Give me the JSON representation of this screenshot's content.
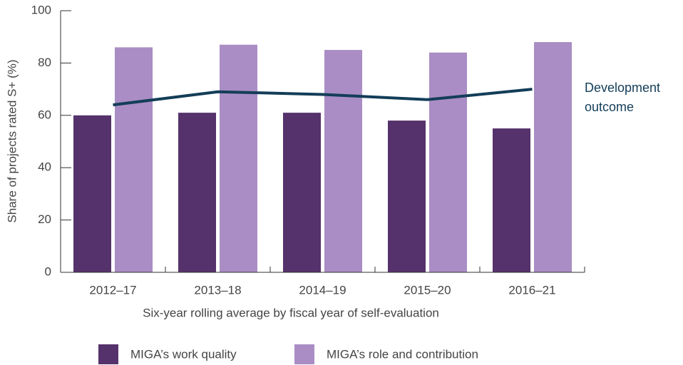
{
  "chart_data": {
    "type": "bar",
    "y_label": "Share of projects rated S+ (%)",
    "x_label": "Six-year rolling average by fiscal year of self-evaluation",
    "categories": [
      "2012–17",
      "2013–18",
      "2014–19",
      "2015–20",
      "2016–21"
    ],
    "series": [
      {
        "name": "MIGA’s work quality",
        "type": "bar",
        "color": "#55326b",
        "values": [
          60,
          61,
          61,
          58,
          55
        ]
      },
      {
        "name": "MIGA’s role and contribution",
        "type": "bar",
        "color": "#a98dc4",
        "values": [
          86,
          87,
          85,
          84,
          88
        ]
      },
      {
        "name": "Development outcome",
        "type": "line",
        "color": "#133d58",
        "values": [
          64,
          69,
          68,
          66,
          70
        ]
      }
    ],
    "ylim": [
      0,
      100
    ],
    "yticks": [
      0,
      20,
      40,
      60,
      80,
      100
    ],
    "legend": "bottom"
  }
}
